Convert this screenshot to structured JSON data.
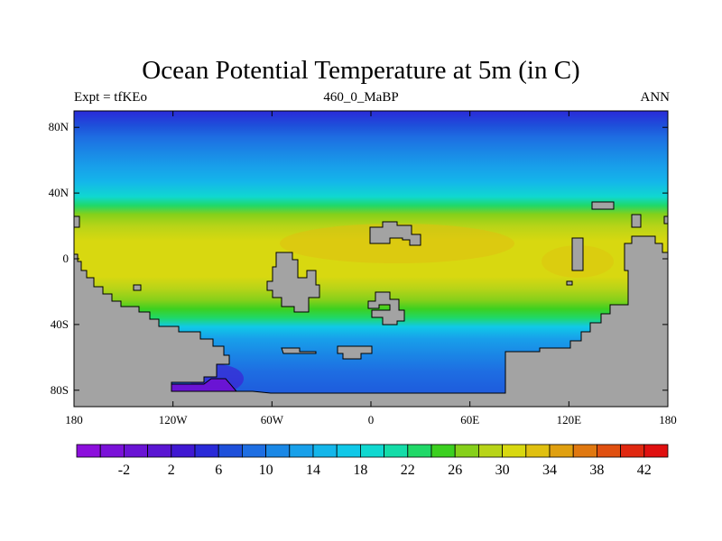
{
  "header": {
    "title": "Ocean Potential Temperature at 5m (in C)",
    "left": "Expt = tfKEo",
    "center": "460_0_MaBP",
    "right": "ANN"
  },
  "axes": {
    "lat_ticks": [
      {
        "value": 80,
        "label": "80N"
      },
      {
        "value": 40,
        "label": "40N"
      },
      {
        "value": 0,
        "label": "0"
      },
      {
        "value": -40,
        "label": "40S"
      },
      {
        "value": -80,
        "label": "80S"
      }
    ],
    "lon_ticks": [
      {
        "value": -180,
        "label": "180"
      },
      {
        "value": -120,
        "label": "120W"
      },
      {
        "value": -60,
        "label": "60W"
      },
      {
        "value": 0,
        "label": "0"
      },
      {
        "value": 60,
        "label": "60E"
      },
      {
        "value": 120,
        "label": "120E"
      },
      {
        "value": 180,
        "label": "180"
      }
    ],
    "lon_range": [
      -180,
      180
    ],
    "lat_range": [
      -90,
      90
    ]
  },
  "colorbar": {
    "levels": [
      -4,
      -2,
      0,
      2,
      4,
      6,
      8,
      10,
      12,
      14,
      16,
      18,
      20,
      22,
      24,
      26,
      28,
      30,
      32,
      34,
      36,
      38,
      40,
      42
    ],
    "labels": [
      "-2",
      "2",
      "6",
      "10",
      "14",
      "18",
      "22",
      "26",
      "30",
      "34",
      "38",
      "42"
    ],
    "colors": [
      "#8c0fdc",
      "#7a12d8",
      "#6a14d4",
      "#5a16d2",
      "#4018d2",
      "#2a2ad8",
      "#1e50da",
      "#1e6ee2",
      "#1a88e6",
      "#18a0ea",
      "#14b6ea",
      "#10c8e8",
      "#10d8d0",
      "#14dca8",
      "#20d868",
      "#3cd020",
      "#86d01a",
      "#b8d418",
      "#d8d810",
      "#e0c010",
      "#e0a010",
      "#e07810",
      "#e05010",
      "#e02810",
      "#e01010"
    ]
  },
  "colors": {
    "land": "#a3a3a3",
    "background": "#ffffff"
  }
}
